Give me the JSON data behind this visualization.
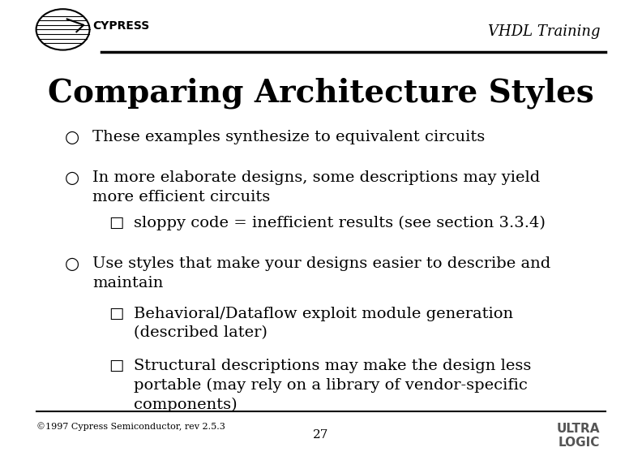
{
  "title": "Comparing Architecture Styles",
  "header_right": "VHDL Training",
  "background_color": "#ffffff",
  "title_fontsize": 28,
  "header_fontsize": 13,
  "body_fontsize": 14,
  "footer_text": "©1997 Cypress Semiconductor, rev 2.5.3",
  "page_number": "27",
  "bullet_items": [
    {
      "level": 1,
      "bullet": "○",
      "text": "These examples synthesize to equivalent circuits"
    },
    {
      "level": 1,
      "bullet": "○",
      "text": "In more elaborate designs, some descriptions may yield\nmore efficient circuits"
    },
    {
      "level": 2,
      "bullet": "□",
      "text": "sloppy code = inefficient results (see section 3.3.4)"
    },
    {
      "level": 1,
      "bullet": "○",
      "text": "Use styles that make your designs easier to describe and\nmaintain"
    },
    {
      "level": 2,
      "bullet": "□",
      "text": "Behavioral/Dataflow exploit module generation\n(described later)"
    },
    {
      "level": 2,
      "bullet": "□",
      "text": "Structural descriptions may make the design less\nportable (may rely on a library of vendor-specific\ncomponents)"
    }
  ]
}
